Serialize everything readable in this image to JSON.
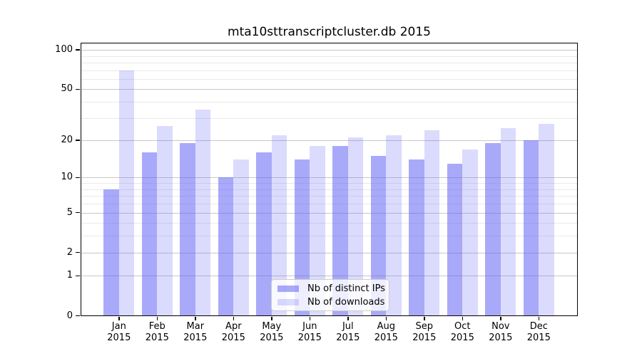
{
  "figure": {
    "background": "#ffffff"
  },
  "chart_data": {
    "type": "bar",
    "title": "mta10sttranscriptcluster.db 2015",
    "year": "2015",
    "categories": [
      "Jan",
      "Feb",
      "Mar",
      "Apr",
      "May",
      "Jun",
      "Jul",
      "Aug",
      "Sep",
      "Oct",
      "Nov",
      "Dec"
    ],
    "series": [
      {
        "name": "Nb of distinct IPs",
        "color": "rgba(90,90,245,0.52)",
        "values": [
          8,
          16,
          19,
          10,
          16,
          14,
          18,
          15,
          14,
          13,
          19,
          20
        ]
      },
      {
        "name": "Nb of downloads",
        "color": "rgba(90,90,245,0.22)",
        "values": [
          70,
          26,
          35,
          14,
          22,
          18,
          21,
          22,
          24,
          17,
          25,
          27
        ]
      }
    ],
    "y_scale": "log10(1+x)",
    "y_major_ticks": [
      0,
      1,
      2,
      5,
      10,
      20,
      50,
      100
    ],
    "y_major_tick_labels": [
      "0",
      "1",
      "2",
      "5",
      "10",
      "20",
      "50",
      "100"
    ],
    "y_minor_gridlines": [
      3,
      4,
      6,
      7,
      8,
      9,
      30,
      40,
      60,
      70,
      80,
      90,
      110
    ],
    "ylim": [
      0,
      115
    ],
    "grid": true,
    "legend_position": "lower center",
    "colors": {
      "major_grid": "#c8c8c8",
      "minor_grid": "#e9e9e9",
      "axis": "#000000",
      "text": "#000000"
    }
  }
}
